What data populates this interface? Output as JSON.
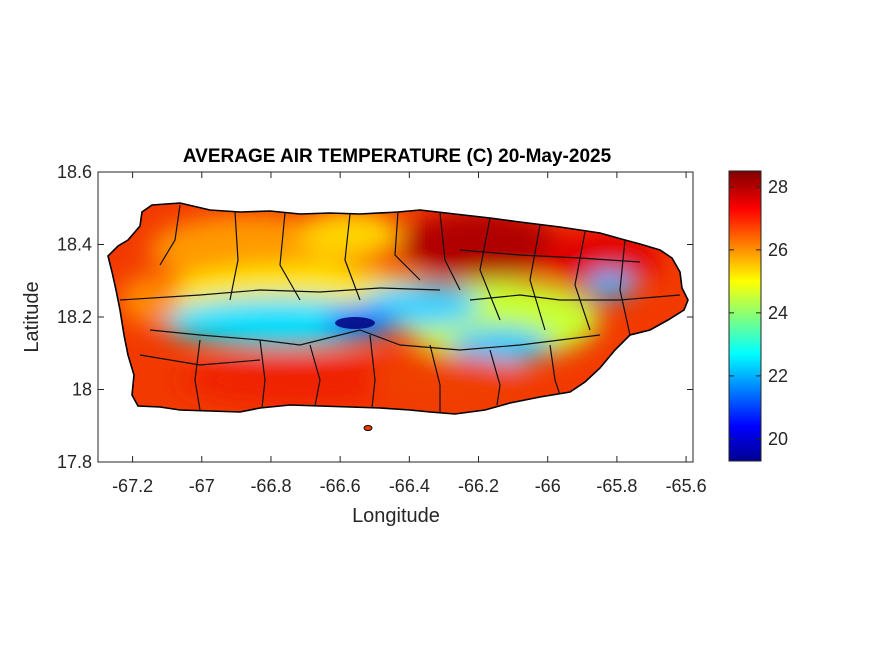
{
  "title": "AVERAGE AIR TEMPERATURE (C) 20-May-2025",
  "axes": {
    "xlabel": "Longitude",
    "ylabel": "Latitude",
    "x_ticks": [
      "-67.2",
      "-67",
      "-66.8",
      "-66.6",
      "-66.4",
      "-66.2",
      "-66",
      "-65.8",
      "-65.6"
    ],
    "y_ticks": [
      "18.6",
      "18.4",
      "18.2",
      "18",
      "17.8"
    ]
  },
  "colorbar": {
    "ticks": [
      "28",
      "26",
      "24",
      "22",
      "20"
    ],
    "colormap": "jet",
    "colors": [
      "#00008f",
      "#0000ff",
      "#00ffff",
      "#ffff00",
      "#ff0000",
      "#800000"
    ]
  },
  "chart_data": {
    "type": "heatmap",
    "title": "AVERAGE AIR TEMPERATURE (C) 20-May-2025",
    "xlabel": "Longitude",
    "ylabel": "Latitude",
    "xlim": [
      -67.3,
      -65.58
    ],
    "ylim": [
      17.8,
      18.6
    ],
    "clim": [
      19.3,
      28.5
    ],
    "colorbar_ticks": [
      20,
      22,
      24,
      26,
      28
    ],
    "grid": false
  }
}
